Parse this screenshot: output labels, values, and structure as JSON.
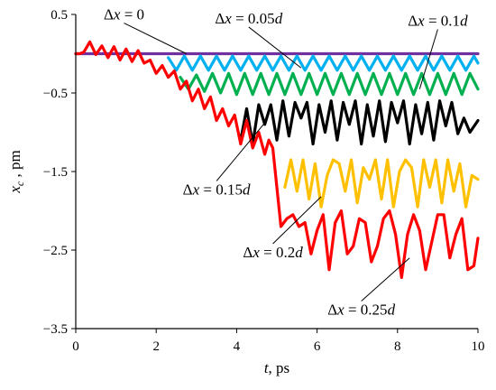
{
  "chart_data": {
    "type": "line",
    "xlabel": {
      "symbol": "t",
      "unit": ", ps"
    },
    "ylabel": {
      "symbol": "x",
      "subscript": "c",
      "unit": " , pm"
    },
    "xlim": [
      0,
      10
    ],
    "ylim": [
      -3.5,
      0.5
    ],
    "x_ticks": [
      "0",
      "2",
      "4",
      "6",
      "8",
      "10"
    ],
    "y_ticks": [
      "0.5",
      "-0.5",
      "-1.5",
      "-2.5",
      "-3.5"
    ],
    "grid": false,
    "legend": "none",
    "series": [
      {
        "name": "Δx = 0",
        "color": "#7030a0",
        "x": [
          0,
          10
        ],
        "y": [
          0,
          0
        ]
      },
      {
        "name": "Δx = 0.05d",
        "color": "#00b0f0",
        "x": [
          2.3,
          2.5,
          2.7,
          2.9,
          3.1,
          3.3,
          3.5,
          3.7,
          3.9,
          4.1,
          4.3,
          4.5,
          4.7,
          4.9,
          5.1,
          5.3,
          5.5,
          5.7,
          5.9,
          6.1,
          6.3,
          6.5,
          6.7,
          6.9,
          7.1,
          7.3,
          7.5,
          7.7,
          7.9,
          8.1,
          8.3,
          8.5,
          8.7,
          8.9,
          9.1,
          9.3,
          9.5,
          9.7,
          9.9,
          10
        ],
        "y": [
          -0.05,
          -0.21,
          -0.03,
          -0.21,
          -0.03,
          -0.21,
          -0.03,
          -0.21,
          -0.03,
          -0.21,
          -0.03,
          -0.21,
          -0.03,
          -0.21,
          -0.03,
          -0.21,
          -0.03,
          -0.21,
          -0.03,
          -0.21,
          -0.03,
          -0.21,
          -0.03,
          -0.21,
          -0.03,
          -0.21,
          -0.03,
          -0.21,
          -0.03,
          -0.21,
          -0.03,
          -0.21,
          -0.03,
          -0.21,
          -0.03,
          -0.21,
          -0.03,
          -0.21,
          -0.03,
          -0.12
        ]
      },
      {
        "name": "Δx = 0.1d",
        "color": "#00b050",
        "x": [
          2.6,
          2.8,
          3.0,
          3.2,
          3.4,
          3.6,
          3.8,
          4.0,
          4.2,
          4.4,
          4.6,
          4.8,
          5.0,
          5.2,
          5.4,
          5.6,
          5.8,
          6.0,
          6.2,
          6.4,
          6.6,
          6.8,
          7.0,
          7.2,
          7.4,
          7.6,
          7.8,
          8.0,
          8.2,
          8.4,
          8.6,
          8.8,
          9.0,
          9.2,
          9.4,
          9.6,
          9.8,
          10
        ],
        "y": [
          -0.3,
          -0.45,
          -0.27,
          -0.48,
          -0.25,
          -0.5,
          -0.25,
          -0.52,
          -0.25,
          -0.52,
          -0.25,
          -0.52,
          -0.25,
          -0.52,
          -0.25,
          -0.52,
          -0.25,
          -0.52,
          -0.25,
          -0.52,
          -0.25,
          -0.52,
          -0.25,
          -0.52,
          -0.25,
          -0.52,
          -0.25,
          -0.52,
          -0.25,
          -0.52,
          -0.25,
          -0.52,
          -0.25,
          -0.52,
          -0.25,
          -0.52,
          -0.25,
          -0.45
        ]
      },
      {
        "name": "Δx = 0.15d",
        "color": "#000000",
        "x": [
          4.1,
          4.25,
          4.4,
          4.55,
          4.7,
          4.85,
          5.0,
          5.15,
          5.3,
          5.45,
          5.6,
          5.75,
          5.9,
          6.05,
          6.2,
          6.35,
          6.5,
          6.65,
          6.8,
          6.95,
          7.1,
          7.25,
          7.4,
          7.55,
          7.7,
          7.85,
          8.0,
          8.15,
          8.3,
          8.45,
          8.6,
          8.75,
          8.9,
          9.05,
          9.2,
          9.35,
          9.5,
          9.65,
          9.8,
          10
        ],
        "y": [
          -1.1,
          -0.7,
          -1.15,
          -0.65,
          -0.9,
          -0.65,
          -1.1,
          -0.6,
          -1.05,
          -0.62,
          -0.82,
          -0.62,
          -1.15,
          -0.65,
          -1.0,
          -0.6,
          -1.1,
          -0.62,
          -0.9,
          -0.6,
          -1.15,
          -0.65,
          -1.05,
          -0.6,
          -1.12,
          -0.62,
          -0.88,
          -0.6,
          -1.15,
          -0.65,
          -1.02,
          -0.62,
          -1.1,
          -0.6,
          -0.92,
          -0.62,
          -1.02,
          -0.82,
          -1.0,
          -0.85
        ]
      },
      {
        "name": "Δx = 0.2d",
        "color": "#ffc000",
        "x": [
          5.2,
          5.35,
          5.5,
          5.65,
          5.8,
          5.95,
          6.1,
          6.25,
          6.4,
          6.55,
          6.7,
          6.85,
          7.0,
          7.15,
          7.3,
          7.45,
          7.6,
          7.75,
          7.9,
          8.05,
          8.2,
          8.35,
          8.5,
          8.65,
          8.8,
          8.95,
          9.1,
          9.25,
          9.4,
          9.55,
          9.7,
          9.85,
          10
        ],
        "y": [
          -1.7,
          -1.35,
          -1.75,
          -1.35,
          -1.85,
          -1.4,
          -1.95,
          -1.55,
          -1.35,
          -1.4,
          -1.75,
          -1.35,
          -1.9,
          -1.45,
          -1.6,
          -1.35,
          -1.85,
          -1.35,
          -1.95,
          -1.5,
          -1.35,
          -1.45,
          -1.95,
          -1.35,
          -1.7,
          -1.35,
          -1.9,
          -1.35,
          -1.75,
          -1.4,
          -1.95,
          -1.55,
          -1.6
        ]
      },
      {
        "name": "Δx = 0.25d",
        "color": "#ff0000",
        "x": [
          0,
          0.1,
          0.2,
          0.35,
          0.5,
          0.65,
          0.8,
          0.95,
          1.1,
          1.25,
          1.4,
          1.55,
          1.7,
          1.85,
          2.0,
          2.15,
          2.3,
          2.45,
          2.6,
          2.75,
          2.9,
          3.05,
          3.2,
          3.35,
          3.5,
          3.65,
          3.8,
          3.95,
          4.1,
          4.25,
          4.4,
          4.55,
          4.7,
          4.8,
          4.9,
          5.0,
          5.1,
          5.25,
          5.4,
          5.55,
          5.7,
          5.85,
          6.0,
          6.15,
          6.3,
          6.45,
          6.6,
          6.75,
          6.9,
          7.05,
          7.2,
          7.35,
          7.5,
          7.65,
          7.8,
          7.95,
          8.1,
          8.25,
          8.4,
          8.55,
          8.7,
          8.85,
          9.0,
          9.15,
          9.3,
          9.45,
          9.6,
          9.75,
          9.9,
          10
        ],
        "y": [
          0,
          0,
          0.02,
          0.15,
          -0.01,
          0.1,
          -0.05,
          0.09,
          -0.08,
          0.06,
          -0.1,
          0.04,
          -0.12,
          -0.08,
          -0.25,
          -0.15,
          -0.3,
          -0.22,
          -0.45,
          -0.35,
          -0.6,
          -0.45,
          -0.7,
          -0.55,
          -0.85,
          -0.7,
          -0.92,
          -0.78,
          -1.15,
          -0.85,
          -1.2,
          -1.0,
          -1.28,
          -1.1,
          -1.2,
          -1.7,
          -2.2,
          -2.1,
          -2.05,
          -2.2,
          -2.15,
          -2.55,
          -2.25,
          -2.05,
          -2.75,
          -2.15,
          -2.0,
          -2.55,
          -2.45,
          -2.1,
          -2.15,
          -2.65,
          -2.45,
          -2.1,
          -2.0,
          -2.3,
          -2.85,
          -2.3,
          -2.05,
          -2.25,
          -2.75,
          -2.4,
          -2.05,
          -2.05,
          -2.6,
          -2.3,
          -2.1,
          -2.75,
          -2.7,
          -2.35
        ]
      }
    ],
    "annotations": [
      {
        "text": [
          "Δ",
          "x",
          " = 0",
          ""
        ],
        "line_x": [
          2.75,
          1.2
        ],
        "line_y": [
          0.0,
          0.39
        ]
      },
      {
        "text": [
          "Δ",
          "x",
          " = 0.05",
          "d"
        ],
        "line_x": [
          5.6,
          4.3
        ],
        "line_y": [
          -0.18,
          0.34
        ]
      },
      {
        "text": [
          "Δ",
          "x",
          " = 0.1",
          "d"
        ],
        "line_x": [
          8.55,
          9.0
        ],
        "line_y": [
          -0.45,
          0.31
        ]
      },
      {
        "text": [
          "Δ",
          "x",
          " = 0.15",
          "d"
        ],
        "line_x": [
          4.75,
          3.5
        ],
        "line_y": [
          -0.85,
          -1.62
        ]
      },
      {
        "text": [
          "Δ",
          "x",
          " = 0.2",
          "d"
        ],
        "line_x": [
          6.1,
          4.9
        ],
        "line_y": [
          -1.82,
          -2.42
        ]
      },
      {
        "text": [
          "Δ",
          "x",
          " = 0.25",
          "d"
        ],
        "line_x": [
          8.3,
          7.1
        ],
        "line_y": [
          -2.6,
          -3.15
        ]
      }
    ]
  }
}
